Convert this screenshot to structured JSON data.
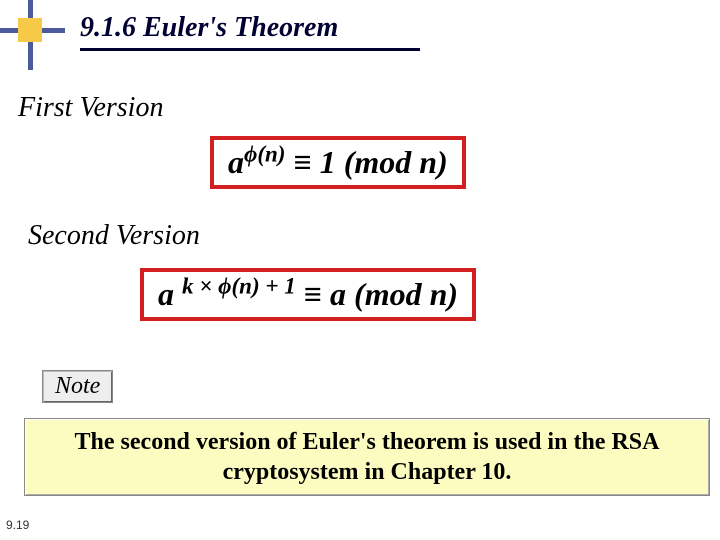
{
  "title": "9.1.6  Euler's Theorem",
  "first_label": "First Version",
  "second_label": "Second Version",
  "formula1": {
    "base": "a",
    "exp_pre": "",
    "phi": "ϕ",
    "exp_arg": "(n)",
    "rhs": " ≡ 1 (mod n)"
  },
  "formula2": {
    "base": "a ",
    "exp_pre": "k × ",
    "phi": "ϕ",
    "exp_arg": "(n) + 1",
    "rhs": " ≡  a (mod n)"
  },
  "note_label": "Note",
  "note_text": "The second version of Euler's theorem is used in the RSA cryptosystem in Chapter 10.",
  "page_number": "9.19",
  "colors": {
    "title_color": "#000033",
    "border_red": "#d22020",
    "decor_yellow": "#f7c948",
    "decor_blue": "#4a5a9a",
    "note_bg": "#fcfcc0"
  }
}
